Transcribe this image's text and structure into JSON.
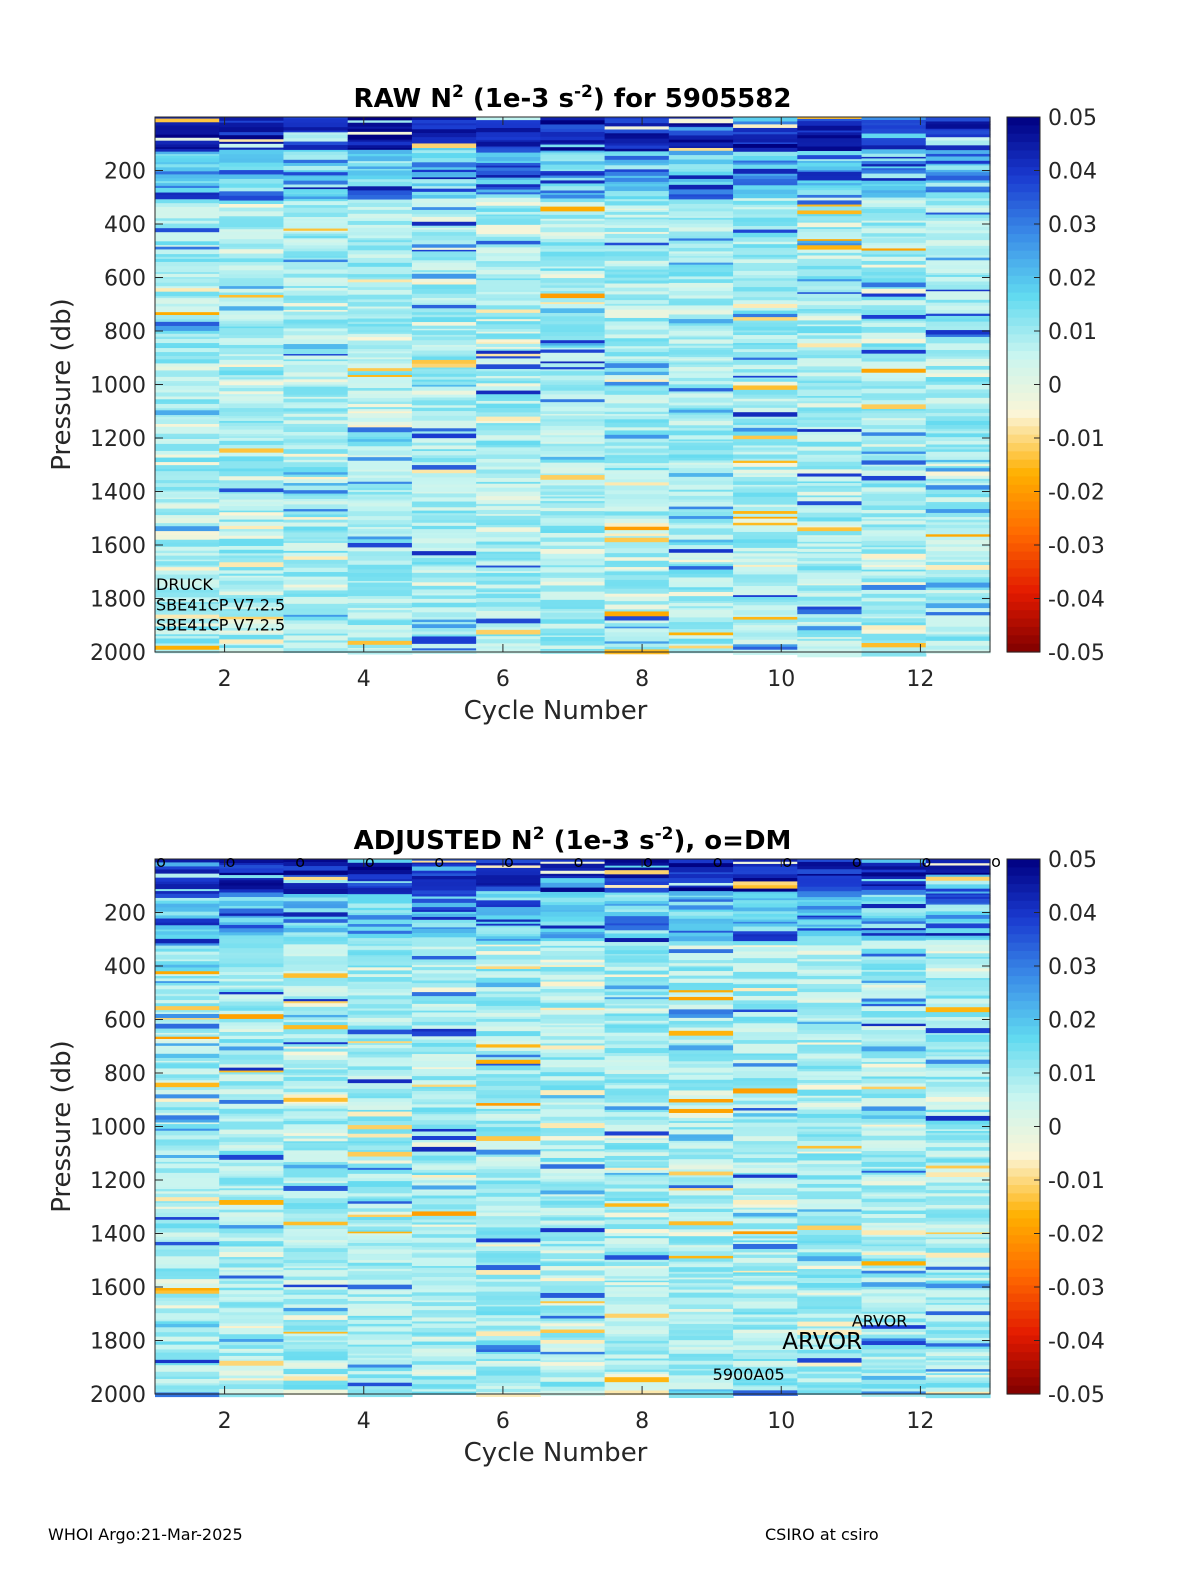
{
  "chart_data": [
    {
      "type": "heatmap",
      "title_prefix": "RAW N",
      "title_sup1": "2",
      "title_mid": " (1e-3 s",
      "title_sup2": "-2",
      "title_suffix": ") for 5905582",
      "xlabel": "Cycle Number",
      "ylabel": "Pressure (db)",
      "xlim": [
        1,
        13
      ],
      "ylim": [
        2000,
        0
      ],
      "x_ticks": [
        2,
        4,
        6,
        8,
        10,
        12
      ],
      "y_ticks": [
        200,
        400,
        600,
        800,
        1000,
        1200,
        1400,
        1600,
        1800,
        2000
      ],
      "cycles": [
        1,
        2,
        3,
        4,
        5,
        6,
        7,
        8,
        9,
        10,
        11,
        12,
        13
      ],
      "colorbar": {
        "min": -0.05,
        "max": 0.05,
        "ticks": [
          "0.05",
          "0.04",
          "0.03",
          "0.02",
          "0.01",
          "0",
          "-0.01",
          "-0.02",
          "-0.03",
          "-0.04",
          "-0.05"
        ]
      },
      "dm_markers": [],
      "annotations": [
        {
          "text": "DRUCK",
          "x": 1.0,
          "y": 1745,
          "size": "small"
        },
        {
          "text": "SBE41CP V7.2.5",
          "x": 1.0,
          "y": 1822,
          "size": "small"
        },
        {
          "text": "SBE41CP V7.2.5",
          "x": 1.0,
          "y": 1897,
          "size": "small"
        }
      ]
    },
    {
      "type": "heatmap",
      "title_prefix": "ADJUSTED N",
      "title_sup1": "2",
      "title_mid": " (1e-3 s",
      "title_sup2": "-2",
      "title_suffix": "), o=DM",
      "xlabel": "Cycle Number",
      "ylabel": "Pressure (db)",
      "xlim": [
        1,
        13
      ],
      "ylim": [
        2000,
        0
      ],
      "x_ticks": [
        2,
        4,
        6,
        8,
        10,
        12
      ],
      "y_ticks": [
        200,
        400,
        600,
        800,
        1000,
        1200,
        1400,
        1600,
        1800,
        2000
      ],
      "cycles": [
        1,
        2,
        3,
        4,
        5,
        6,
        7,
        8,
        9,
        10,
        11,
        12,
        13
      ],
      "colorbar": {
        "min": -0.05,
        "max": 0.05,
        "ticks": [
          "0.05",
          "0.04",
          "0.03",
          "0.02",
          "0.01",
          "0",
          "-0.01",
          "-0.02",
          "-0.03",
          "-0.04",
          "-0.05"
        ]
      },
      "dm_markers": [
        1,
        2,
        3,
        4,
        5,
        6,
        7,
        8,
        9,
        10,
        11,
        12,
        13
      ],
      "dm_marker_symbol": "o",
      "annotations": [
        {
          "text": "ARVOR",
          "x": 11.0,
          "y": 1725,
          "size": "small"
        },
        {
          "text": "ARVOR",
          "x": 10.0,
          "y": 1810,
          "size": "large"
        },
        {
          "text": "5900A05",
          "x": 9.0,
          "y": 1925,
          "size": "small"
        }
      ]
    }
  ],
  "colors": {
    "colormap": [
      "#800000",
      "#e31a00",
      "#ff6a00",
      "#ffb000",
      "#fbf5d6",
      "#c8f5f0",
      "#60d9f0",
      "#3b8ee8",
      "#1a3ad0",
      "#000080"
    ]
  },
  "footer": {
    "left": "WHOI Argo:21-Mar-2025",
    "right": "CSIRO at csiro"
  }
}
